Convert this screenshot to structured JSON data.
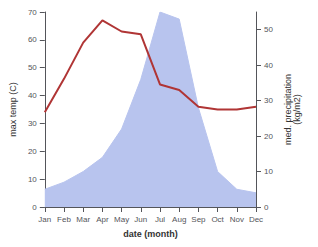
{
  "chart_data": {
    "type": "line",
    "xlabel": "date (month)",
    "ylabel": "max temp (C)",
    "y2label": "med. precipitation\n(kg/m2)",
    "categories": [
      "Jan",
      "Feb",
      "Mar",
      "Apr",
      "May",
      "Jun",
      "Jul",
      "Aug",
      "Sep",
      "Oct",
      "Nov",
      "Dec"
    ],
    "series": [
      {
        "type": "area",
        "axis": "y2",
        "color": "#b8c4ee",
        "values": [
          5,
          7,
          10,
          14,
          22,
          36,
          55,
          53,
          28,
          10,
          5,
          4
        ]
      },
      {
        "type": "line",
        "color": "#b03535",
        "values": [
          34,
          46,
          59,
          67,
          63,
          62,
          44,
          42,
          36,
          35,
          35,
          36
        ]
      }
    ],
    "ylim": [
      0,
      70
    ],
    "yticks": [
      0,
      10,
      20,
      30,
      40,
      50,
      60,
      70
    ],
    "y2lim": [
      0,
      55
    ],
    "y2ticks": [
      0,
      10,
      20,
      30,
      40,
      50
    ],
    "grid": false
  }
}
